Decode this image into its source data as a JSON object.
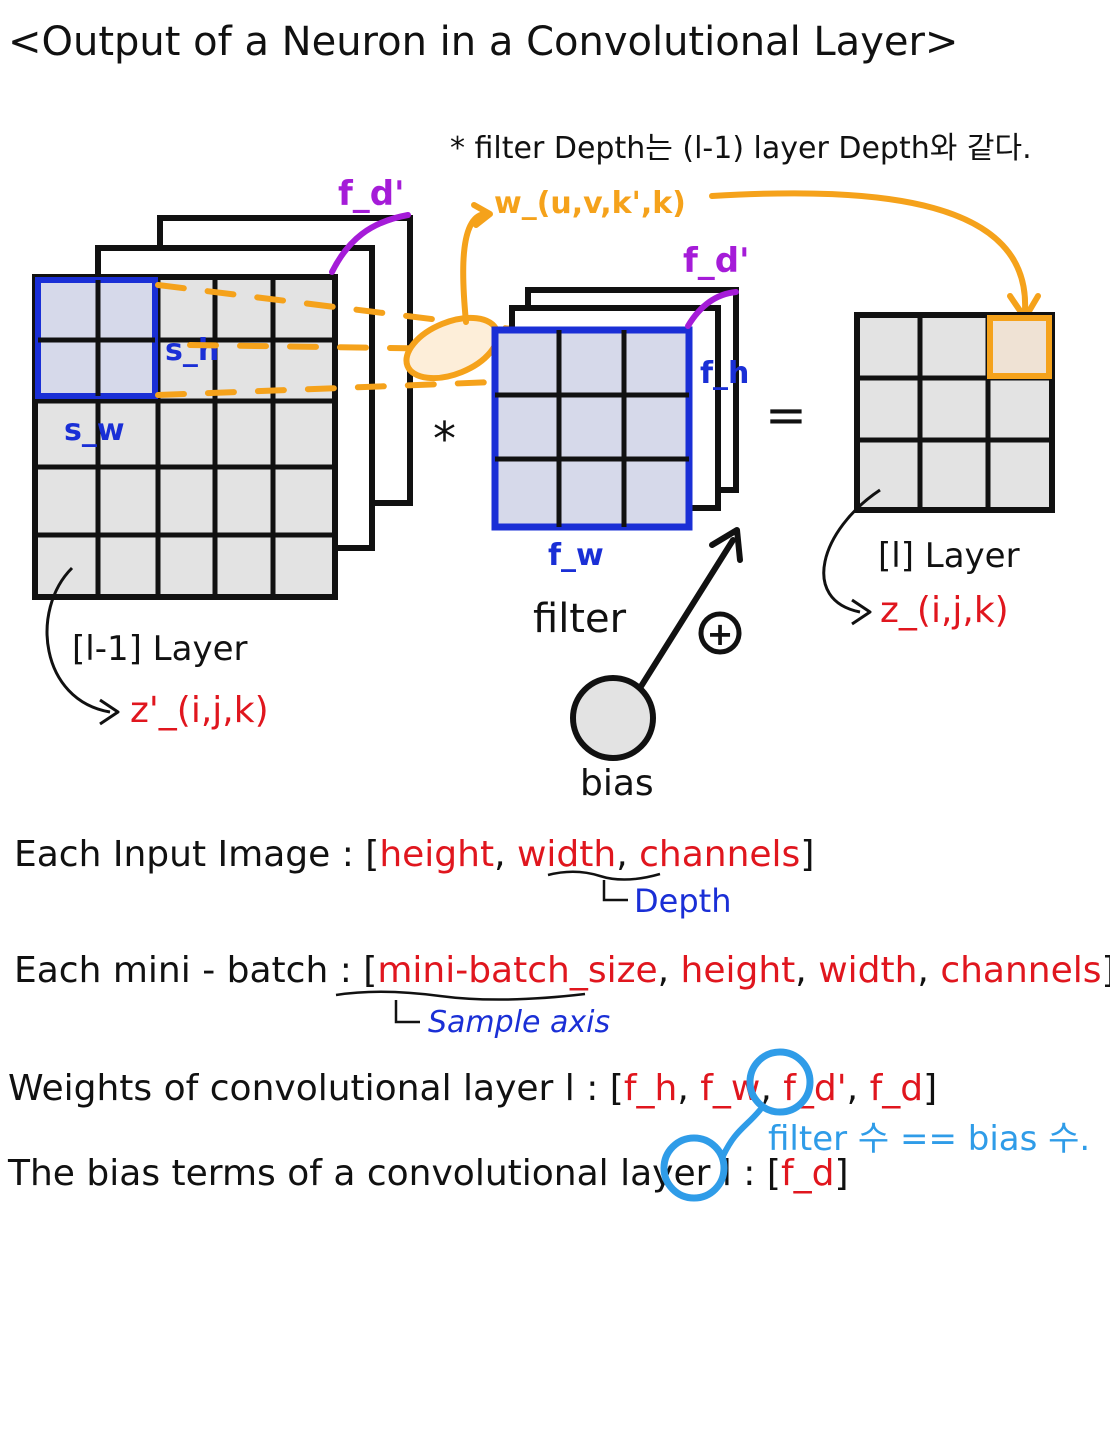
{
  "title": "<Output of a Neuron in a Convolutional Layer>",
  "note": "* filter Depth는 (l-1) layer Depth와 같다.",
  "labels": {
    "f_d_prime_input": "f_d'",
    "f_d_prime_filter": "f_d'",
    "weight": "w_(u,v,k',k)",
    "s_h": "s_h",
    "s_w": "s_w",
    "f_h": "f_h",
    "f_w": "f_w",
    "conv_op": "*",
    "equals": "=",
    "plus": "+",
    "filter": "filter",
    "bias": "bias",
    "prev_layer": "[l-1] Layer",
    "prev_output": "z'_(i,j,k)",
    "cur_layer": "[l] Layer",
    "cur_output": "z_(i,j,k)"
  },
  "lines": {
    "input_image": {
      "prefix": "Each Input Image : [",
      "items": [
        "height",
        "width",
        "channels"
      ],
      "suffix": "]",
      "note": "Depth"
    },
    "mini_batch": {
      "prefix": "Each mini - batch : [",
      "items": [
        "mini-batch_size",
        "height",
        "width",
        "channels"
      ],
      "suffix": "]",
      "note": "Sample axis"
    },
    "weights": {
      "prefix": "Weights of convolutional layer l : [",
      "items": [
        "f_h",
        "f_w",
        "f_d'",
        "f_d"
      ],
      "suffix": "]"
    },
    "bias_terms": {
      "prefix": "The bias terms of a convolutional layer l : [",
      "items": [
        "f_d"
      ],
      "suffix": "]"
    },
    "filter_bias_note": "filter 수 == bias 수."
  },
  "colors": {
    "ink": "#111111",
    "red": "#e0161e",
    "blue": "#1a2fd6",
    "purple": "#a51cd8",
    "orange": "#f5a21b",
    "sky": "#2f9ce8",
    "cell_gray": "#e3e3e3",
    "cell_blue": "#d6d9ea"
  }
}
